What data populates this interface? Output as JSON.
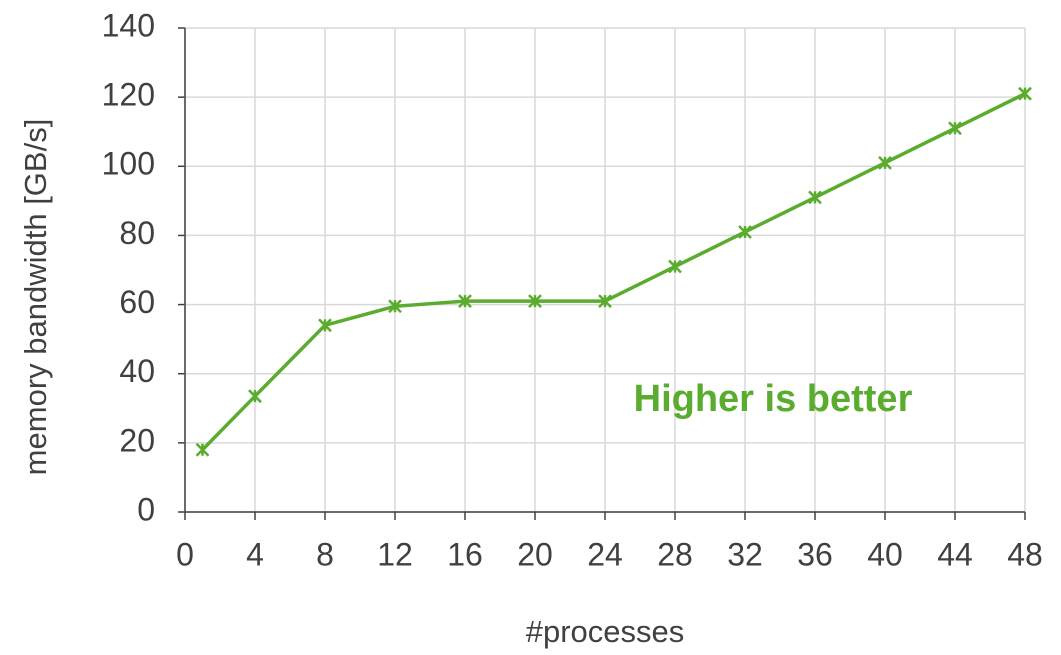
{
  "chart_data": {
    "type": "line",
    "x": [
      1,
      4,
      8,
      12,
      16,
      20,
      24,
      28,
      32,
      36,
      40,
      44,
      48
    ],
    "values": [
      18,
      33.5,
      54,
      59.5,
      61,
      61,
      61,
      71,
      81,
      91,
      101,
      111,
      121
    ],
    "color": "#5aac2e",
    "xlabel": "#processes",
    "ylabel": "memory bandwidth [GB/s]",
    "annotation": "Higher is better",
    "xlim": [
      0,
      48
    ],
    "xticks": [
      0,
      4,
      8,
      12,
      16,
      20,
      24,
      28,
      32,
      36,
      40,
      44,
      48
    ],
    "ylim": [
      0,
      140
    ],
    "yticks": [
      0,
      20,
      40,
      60,
      80,
      100,
      120,
      140
    ],
    "grid": true
  }
}
